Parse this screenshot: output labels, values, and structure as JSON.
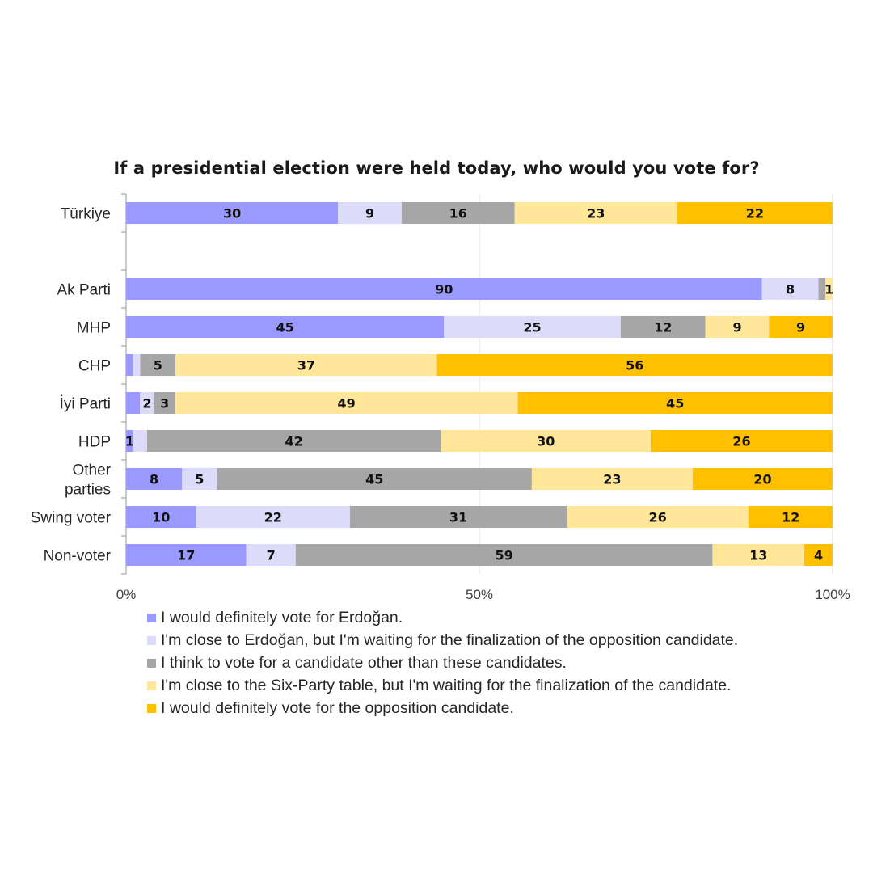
{
  "chart_data": {
    "type": "bar",
    "orientation": "horizontal",
    "stacked": "percent",
    "title": "If a presidential election were held today, who would you vote for?",
    "categories": [
      "Türkiye",
      "",
      "Ak Parti",
      "MHP",
      "CHP",
      "İyi Parti",
      "HDP",
      "Other parties",
      "Swing voter",
      "Non-voter"
    ],
    "category_label_lines": [
      [
        "Türkiye"
      ],
      [],
      [
        "Ak Parti"
      ],
      [
        "MHP"
      ],
      [
        "CHP"
      ],
      [
        "İyi Parti"
      ],
      [
        "HDP"
      ],
      [
        "Other",
        "parties"
      ],
      [
        "Swing voter"
      ],
      [
        "Non-voter"
      ]
    ],
    "series": [
      {
        "name": "I would definitely vote for Erdoğan.",
        "color": "#9999ff",
        "values": [
          30,
          null,
          90,
          45,
          1,
          2,
          1,
          8,
          10,
          17
        ],
        "labels": [
          "30",
          "",
          "90",
          "45",
          "",
          "",
          "1",
          "8",
          "10",
          "17"
        ]
      },
      {
        "name": "I'm close to Erdoğan, but I'm waiting for the finalization of the opposition candidate.",
        "color": "#dcdcfa",
        "values": [
          9,
          null,
          8,
          25,
          1,
          2,
          2,
          5,
          22,
          7
        ],
        "labels": [
          "9",
          "",
          "8",
          "25",
          "",
          "2",
          "",
          "5",
          "22",
          "7"
        ]
      },
      {
        "name": "I think to vote for a candidate other than these candidates.",
        "color": "#a6a6a6",
        "values": [
          16,
          null,
          1,
          12,
          5,
          3,
          42,
          45,
          31,
          59
        ],
        "labels": [
          "16",
          "",
          "",
          "12",
          "5",
          "3",
          "42",
          "45",
          "31",
          "59"
        ]
      },
      {
        "name": "I'm close to the Six-Party table, but I'm waiting for the finalization of the candidate.",
        "color": "#ffe699",
        "values": [
          23,
          null,
          1,
          9,
          37,
          49,
          30,
          23,
          26,
          13
        ],
        "labels": [
          "23",
          "",
          "1",
          "9",
          "37",
          "49",
          "30",
          "23",
          "26",
          "13"
        ]
      },
      {
        "name": "I would definitely vote for the opposition candidate.",
        "color": "#ffc000",
        "values": [
          22,
          null,
          0,
          9,
          56,
          45,
          26,
          20,
          12,
          4
        ],
        "labels": [
          "22",
          "",
          "",
          "9",
          "56",
          "45",
          "26",
          "20",
          "12",
          "4"
        ]
      }
    ],
    "x_ticks": [
      "0%",
      "50%",
      "100%"
    ],
    "xlim": [
      0,
      100
    ],
    "grid": true,
    "legend_position": "bottom"
  }
}
